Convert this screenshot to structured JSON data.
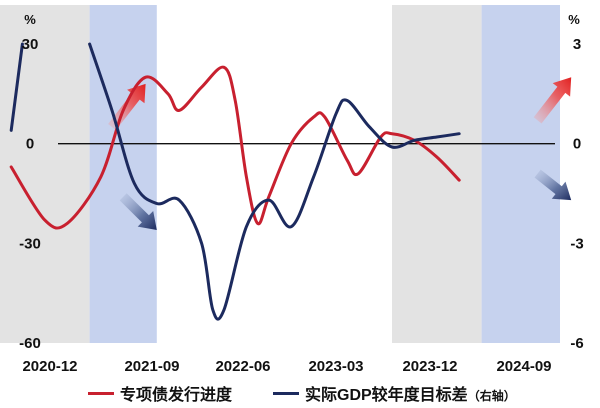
{
  "chart_data": {
    "type": "line",
    "x_tick_labels": [
      "2020-12",
      "2021-09",
      "2022-06",
      "2023-03",
      "2023-12",
      "2024-09"
    ],
    "left_axis": {
      "unit": "%",
      "ticks": [
        "30",
        "0",
        "-30",
        "-60"
      ],
      "ylim": [
        -60,
        30
      ]
    },
    "right_axis": {
      "unit": "%",
      "ticks": [
        "3",
        "0",
        "-3",
        "-6"
      ],
      "ylim": [
        -6,
        3
      ]
    },
    "shaded_periods": [
      {
        "start": "2020-10",
        "end": "2021-06",
        "color": "#e3e3e3"
      },
      {
        "start": "2021-06",
        "end": "2021-12",
        "color": "#c6d2ee"
      },
      {
        "start": "2023-09",
        "end": "2024-05",
        "color": "#e3e3e3"
      },
      {
        "start": "2024-05",
        "end": "2024-12",
        "color": "#c6d2ee"
      }
    ],
    "series": [
      {
        "name": "专项债发行进度",
        "axis": "left",
        "color": "#c8202f",
        "points": [
          [
            "2020-11",
            -7
          ],
          [
            "2021-02",
            -23
          ],
          [
            "2021-04",
            -24
          ],
          [
            "2021-07",
            -10
          ],
          [
            "2021-09",
            10
          ],
          [
            "2021-11",
            20
          ],
          [
            "2022-01",
            15
          ],
          [
            "2022-02",
            10
          ],
          [
            "2022-04",
            17
          ],
          [
            "2022-06",
            23
          ],
          [
            "2022-07",
            13
          ],
          [
            "2022-08",
            -10
          ],
          [
            "2022-09",
            -24
          ],
          [
            "2022-10",
            -16
          ],
          [
            "2022-12",
            0
          ],
          [
            "2023-02",
            8
          ],
          [
            "2023-03",
            8
          ],
          [
            "2023-05",
            -5
          ],
          [
            "2023-06",
            -9
          ],
          [
            "2023-08",
            2
          ],
          [
            "2023-09",
            3
          ],
          [
            "2023-11",
            1
          ],
          [
            "2024-01",
            -4
          ],
          [
            "2024-03",
            -11
          ]
        ]
      },
      {
        "name": "实际GDP较年度目标差",
        "name_suffix": "（右轴）",
        "axis": "right",
        "color": "#1c2a5e",
        "segments": [
          [
            [
              "2020-11",
              0.4
            ],
            [
              "2020-12",
              3.0
            ]
          ],
          [
            [
              "2021-06",
              3.0
            ],
            [
              "2021-08",
              1.0
            ],
            [
              "2021-10",
              -1.2
            ],
            [
              "2021-12",
              -1.8
            ],
            [
              "2022-02",
              -1.7
            ],
            [
              "2022-04",
              -3.0
            ],
            [
              "2022-05",
              -5.0
            ],
            [
              "2022-06",
              -5.0
            ],
            [
              "2022-08",
              -2.5
            ],
            [
              "2022-10",
              -1.7
            ],
            [
              "2022-12",
              -2.5
            ],
            [
              "2023-02",
              -1.0
            ],
            [
              "2023-04",
              0.9
            ],
            [
              "2023-05",
              1.3
            ],
            [
              "2023-07",
              0.5
            ],
            [
              "2023-09",
              -0.1
            ],
            [
              "2023-11",
              0.1
            ],
            [
              "2024-01",
              0.2
            ],
            [
              "2024-03",
              0.3
            ]
          ]
        ]
      }
    ],
    "arrows": [
      {
        "start": "2021-08",
        "end": "2021-11",
        "from_value": 0.5,
        "to_value": 1.8,
        "color": "red"
      },
      {
        "start": "2021-09",
        "end": "2021-12",
        "from_value": -1.6,
        "to_value": -2.6,
        "color": "navy"
      },
      {
        "start": "2024-10",
        "end": "2025-01",
        "from_value": 0.7,
        "to_value": 2.0,
        "color": "red"
      },
      {
        "start": "2024-10",
        "end": "2025-01",
        "from_value": -0.9,
        "to_value": -1.7,
        "color": "navy"
      }
    ],
    "legend_position": "bottom",
    "grid": false
  },
  "legend": {
    "series1_label": "专项债发行进度",
    "series2_label": "实际GDP较年度目标差",
    "series2_suffix": "（右轴）"
  },
  "colors": {
    "red": "#c8202f",
    "navy": "#1c2a5e",
    "grey_band": "#e3e3e3",
    "blue_band": "#c6d2ee"
  }
}
